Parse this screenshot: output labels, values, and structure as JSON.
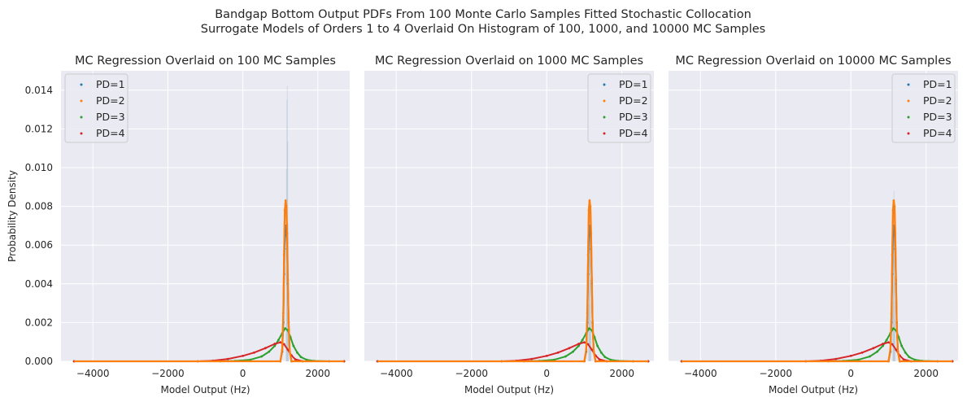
{
  "figure": {
    "suptitle_line1": "Bandgap Bottom Output PDFs From 100 Monte Carlo Samples Fitted Stochastic Collocation",
    "suptitle_line2": "Surrogate Models of Orders 1 to 4 Overlaid On Histogram of 100, 1000, and 10000 MC Samples"
  },
  "colors": {
    "background": "#ffffff",
    "axes_face": "#eaeaf2",
    "grid": "#ffffff",
    "PD=1": "#1f77b4",
    "PD=2": "#ff7f0e",
    "PD=3": "#2ca02c",
    "PD=4": "#d62728",
    "histogram": "#9fb6c8"
  },
  "chart_data": [
    {
      "type": "line",
      "title": "MC Regression Overlaid on 100 MC Samples",
      "xlabel": "Model Output (Hz)",
      "ylabel": "Probability Density",
      "xlim": [
        -4850,
        2850
      ],
      "ylim": [
        0,
        0.015
      ],
      "xticks": [
        -4000,
        -2000,
        0,
        2000
      ],
      "xtick_labels": [
        "−4000",
        "−2000",
        "0",
        "2000"
      ],
      "yticks": [
        0,
        0.002,
        0.004,
        0.006,
        0.008,
        0.01,
        0.012,
        0.014
      ],
      "ytick_labels": [
        "0.000",
        "0.002",
        "0.004",
        "0.006",
        "0.008",
        "0.010",
        "0.012",
        "0.014"
      ],
      "grid": true,
      "legend_position": "upper-left",
      "histogram": {
        "name": "MC samples (100)",
        "peak_x": 1180,
        "peak_density": 0.0142
      },
      "series": [
        {
          "name": "PD=1",
          "color": "#1f77b4",
          "x": [
            -4500,
            1000,
            1050,
            1080,
            1100,
            1120,
            1140,
            1160,
            1180,
            1200,
            1220,
            1250,
            1300,
            2700
          ],
          "y": [
            0,
            0,
            0.0005,
            0.002,
            0.0045,
            0.0065,
            0.007,
            0.0068,
            0.0058,
            0.004,
            0.002,
            0.0005,
            0,
            0
          ]
        },
        {
          "name": "PD=2",
          "color": "#ff7f0e",
          "x": [
            -4500,
            1000,
            1050,
            1080,
            1100,
            1120,
            1140,
            1160,
            1180,
            1200,
            1220,
            1250,
            1300,
            2700
          ],
          "y": [
            0,
            0,
            0.0006,
            0.0025,
            0.0055,
            0.0078,
            0.0083,
            0.008,
            0.0066,
            0.0042,
            0.002,
            0.0005,
            0,
            0
          ]
        },
        {
          "name": "PD=3",
          "color": "#2ca02c",
          "x": [
            -4500,
            -600,
            -200,
            200,
            500,
            700,
            850,
            950,
            1050,
            1130,
            1200,
            1270,
            1350,
            1450,
            1550,
            1700,
            1900,
            2300,
            2700
          ],
          "y": [
            0,
            0,
            2e-05,
            8e-05,
            0.00025,
            0.0005,
            0.0008,
            0.0011,
            0.00145,
            0.0017,
            0.0016,
            0.00125,
            0.0008,
            0.00045,
            0.00022,
            8e-05,
            2e-05,
            0,
            0
          ]
        },
        {
          "name": "PD=4",
          "color": "#d62728",
          "x": [
            -4500,
            -1200,
            -800,
            -400,
            0,
            300,
            600,
            850,
            1000,
            1100,
            1200,
            1300,
            1400,
            1600,
            2700
          ],
          "y": [
            0,
            0,
            3e-05,
            0.00012,
            0.00028,
            0.00045,
            0.00068,
            0.0009,
            0.00098,
            0.00088,
            0.0006,
            0.0003,
            0.0001,
            0,
            0
          ]
        }
      ]
    },
    {
      "type": "line",
      "title": "MC Regression Overlaid on 1000 MC Samples",
      "xlabel": "Model Output (Hz)",
      "ylabel": "",
      "xlim": [
        -4850,
        2850
      ],
      "ylim": [
        0,
        0.015
      ],
      "xticks": [
        -4000,
        -2000,
        0,
        2000
      ],
      "xtick_labels": [
        "−4000",
        "−2000",
        "0",
        "2000"
      ],
      "grid": true,
      "legend_position": "upper-right",
      "histogram": {
        "name": "MC samples (1000)",
        "peak_x": 1140,
        "peak_density": 0.0084
      },
      "series": [
        {
          "name": "PD=1",
          "color": "#1f77b4",
          "x": [
            -4500,
            1000,
            1050,
            1080,
            1100,
            1120,
            1140,
            1160,
            1180,
            1200,
            1220,
            1250,
            1300,
            2700
          ],
          "y": [
            0,
            0,
            0.0005,
            0.002,
            0.0045,
            0.0065,
            0.007,
            0.0068,
            0.0058,
            0.004,
            0.002,
            0.0005,
            0,
            0
          ]
        },
        {
          "name": "PD=2",
          "color": "#ff7f0e",
          "x": [
            -4500,
            1000,
            1050,
            1080,
            1100,
            1120,
            1140,
            1160,
            1180,
            1200,
            1220,
            1250,
            1300,
            2700
          ],
          "y": [
            0,
            0,
            0.0006,
            0.0025,
            0.0055,
            0.0078,
            0.0083,
            0.008,
            0.0066,
            0.0042,
            0.002,
            0.0005,
            0,
            0
          ]
        },
        {
          "name": "PD=3",
          "color": "#2ca02c",
          "x": [
            -4500,
            -600,
            -200,
            200,
            500,
            700,
            850,
            950,
            1050,
            1130,
            1200,
            1270,
            1350,
            1450,
            1550,
            1700,
            1900,
            2300,
            2700
          ],
          "y": [
            0,
            0,
            2e-05,
            8e-05,
            0.00025,
            0.0005,
            0.0008,
            0.0011,
            0.00145,
            0.0017,
            0.0016,
            0.00125,
            0.0008,
            0.00045,
            0.00022,
            8e-05,
            2e-05,
            0,
            0
          ]
        },
        {
          "name": "PD=4",
          "color": "#d62728",
          "x": [
            -4500,
            -1200,
            -800,
            -400,
            0,
            300,
            600,
            850,
            1000,
            1100,
            1200,
            1300,
            1400,
            1600,
            2700
          ],
          "y": [
            0,
            0,
            3e-05,
            0.00012,
            0.00028,
            0.00045,
            0.00068,
            0.0009,
            0.00098,
            0.00088,
            0.0006,
            0.0003,
            0.0001,
            0,
            0
          ]
        }
      ]
    },
    {
      "type": "line",
      "title": "MC Regression Overlaid on 10000 MC Samples",
      "xlabel": "Model Output (Hz)",
      "ylabel": "",
      "xlim": [
        -4850,
        2850
      ],
      "ylim": [
        0,
        0.015
      ],
      "xticks": [
        -4000,
        -2000,
        0,
        2000
      ],
      "xtick_labels": [
        "−4000",
        "−2000",
        "0",
        "2000"
      ],
      "grid": true,
      "legend_position": "upper-right",
      "histogram": {
        "name": "MC samples (10000)",
        "peak_x": 1140,
        "peak_density": 0.0088
      },
      "series": [
        {
          "name": "PD=1",
          "color": "#1f77b4",
          "x": [
            -4500,
            1000,
            1050,
            1080,
            1100,
            1120,
            1140,
            1160,
            1180,
            1200,
            1220,
            1250,
            1300,
            2700
          ],
          "y": [
            0,
            0,
            0.0005,
            0.002,
            0.0045,
            0.0065,
            0.007,
            0.0068,
            0.0058,
            0.004,
            0.002,
            0.0005,
            0,
            0
          ]
        },
        {
          "name": "PD=2",
          "color": "#ff7f0e",
          "x": [
            -4500,
            1000,
            1050,
            1080,
            1100,
            1120,
            1140,
            1160,
            1180,
            1200,
            1220,
            1250,
            1300,
            2700
          ],
          "y": [
            0,
            0,
            0.0006,
            0.0025,
            0.0055,
            0.0078,
            0.0083,
            0.008,
            0.0066,
            0.0042,
            0.002,
            0.0005,
            0,
            0
          ]
        },
        {
          "name": "PD=3",
          "color": "#2ca02c",
          "x": [
            -4500,
            -600,
            -200,
            200,
            500,
            700,
            850,
            950,
            1050,
            1130,
            1200,
            1270,
            1350,
            1450,
            1550,
            1700,
            1900,
            2300,
            2700
          ],
          "y": [
            0,
            0,
            2e-05,
            8e-05,
            0.00025,
            0.0005,
            0.0008,
            0.0011,
            0.00145,
            0.0017,
            0.0016,
            0.00125,
            0.0008,
            0.00045,
            0.00022,
            8e-05,
            2e-05,
            0,
            0
          ]
        },
        {
          "name": "PD=4",
          "color": "#d62728",
          "x": [
            -4500,
            -1200,
            -800,
            -400,
            0,
            300,
            600,
            850,
            1000,
            1100,
            1200,
            1300,
            1400,
            1600,
            2700
          ],
          "y": [
            0,
            0,
            3e-05,
            0.00012,
            0.00028,
            0.00045,
            0.00068,
            0.0009,
            0.00098,
            0.00088,
            0.0006,
            0.0003,
            0.0001,
            0,
            0
          ]
        }
      ]
    }
  ]
}
